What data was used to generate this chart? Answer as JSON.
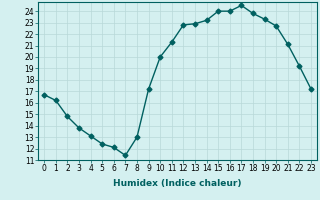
{
  "x": [
    0,
    1,
    2,
    3,
    4,
    5,
    6,
    7,
    8,
    9,
    10,
    11,
    12,
    13,
    14,
    15,
    16,
    17,
    18,
    19,
    20,
    21,
    22,
    23
  ],
  "y": [
    16.7,
    16.2,
    14.8,
    13.8,
    13.1,
    12.4,
    12.1,
    11.4,
    13.0,
    17.2,
    20.0,
    21.3,
    22.8,
    22.9,
    23.2,
    24.0,
    24.0,
    24.5,
    23.8,
    23.3,
    22.7,
    21.1,
    19.2,
    17.2
  ],
  "line_color": "#006060",
  "marker": "D",
  "marker_size": 2.5,
  "background_color": "#d4f0f0",
  "grid_color": "#b8d8d8",
  "xlabel": "Humidex (Indice chaleur)",
  "xlim": [
    -0.5,
    23.5
  ],
  "ylim": [
    11,
    24.8
  ],
  "yticks": [
    11,
    12,
    13,
    14,
    15,
    16,
    17,
    18,
    19,
    20,
    21,
    22,
    23,
    24
  ],
  "xticks": [
    0,
    1,
    2,
    3,
    4,
    5,
    6,
    7,
    8,
    9,
    10,
    11,
    12,
    13,
    14,
    15,
    16,
    17,
    18,
    19,
    20,
    21,
    22,
    23
  ],
  "tick_fontsize": 5.5,
  "label_fontsize": 6.5,
  "line_width": 1.0
}
